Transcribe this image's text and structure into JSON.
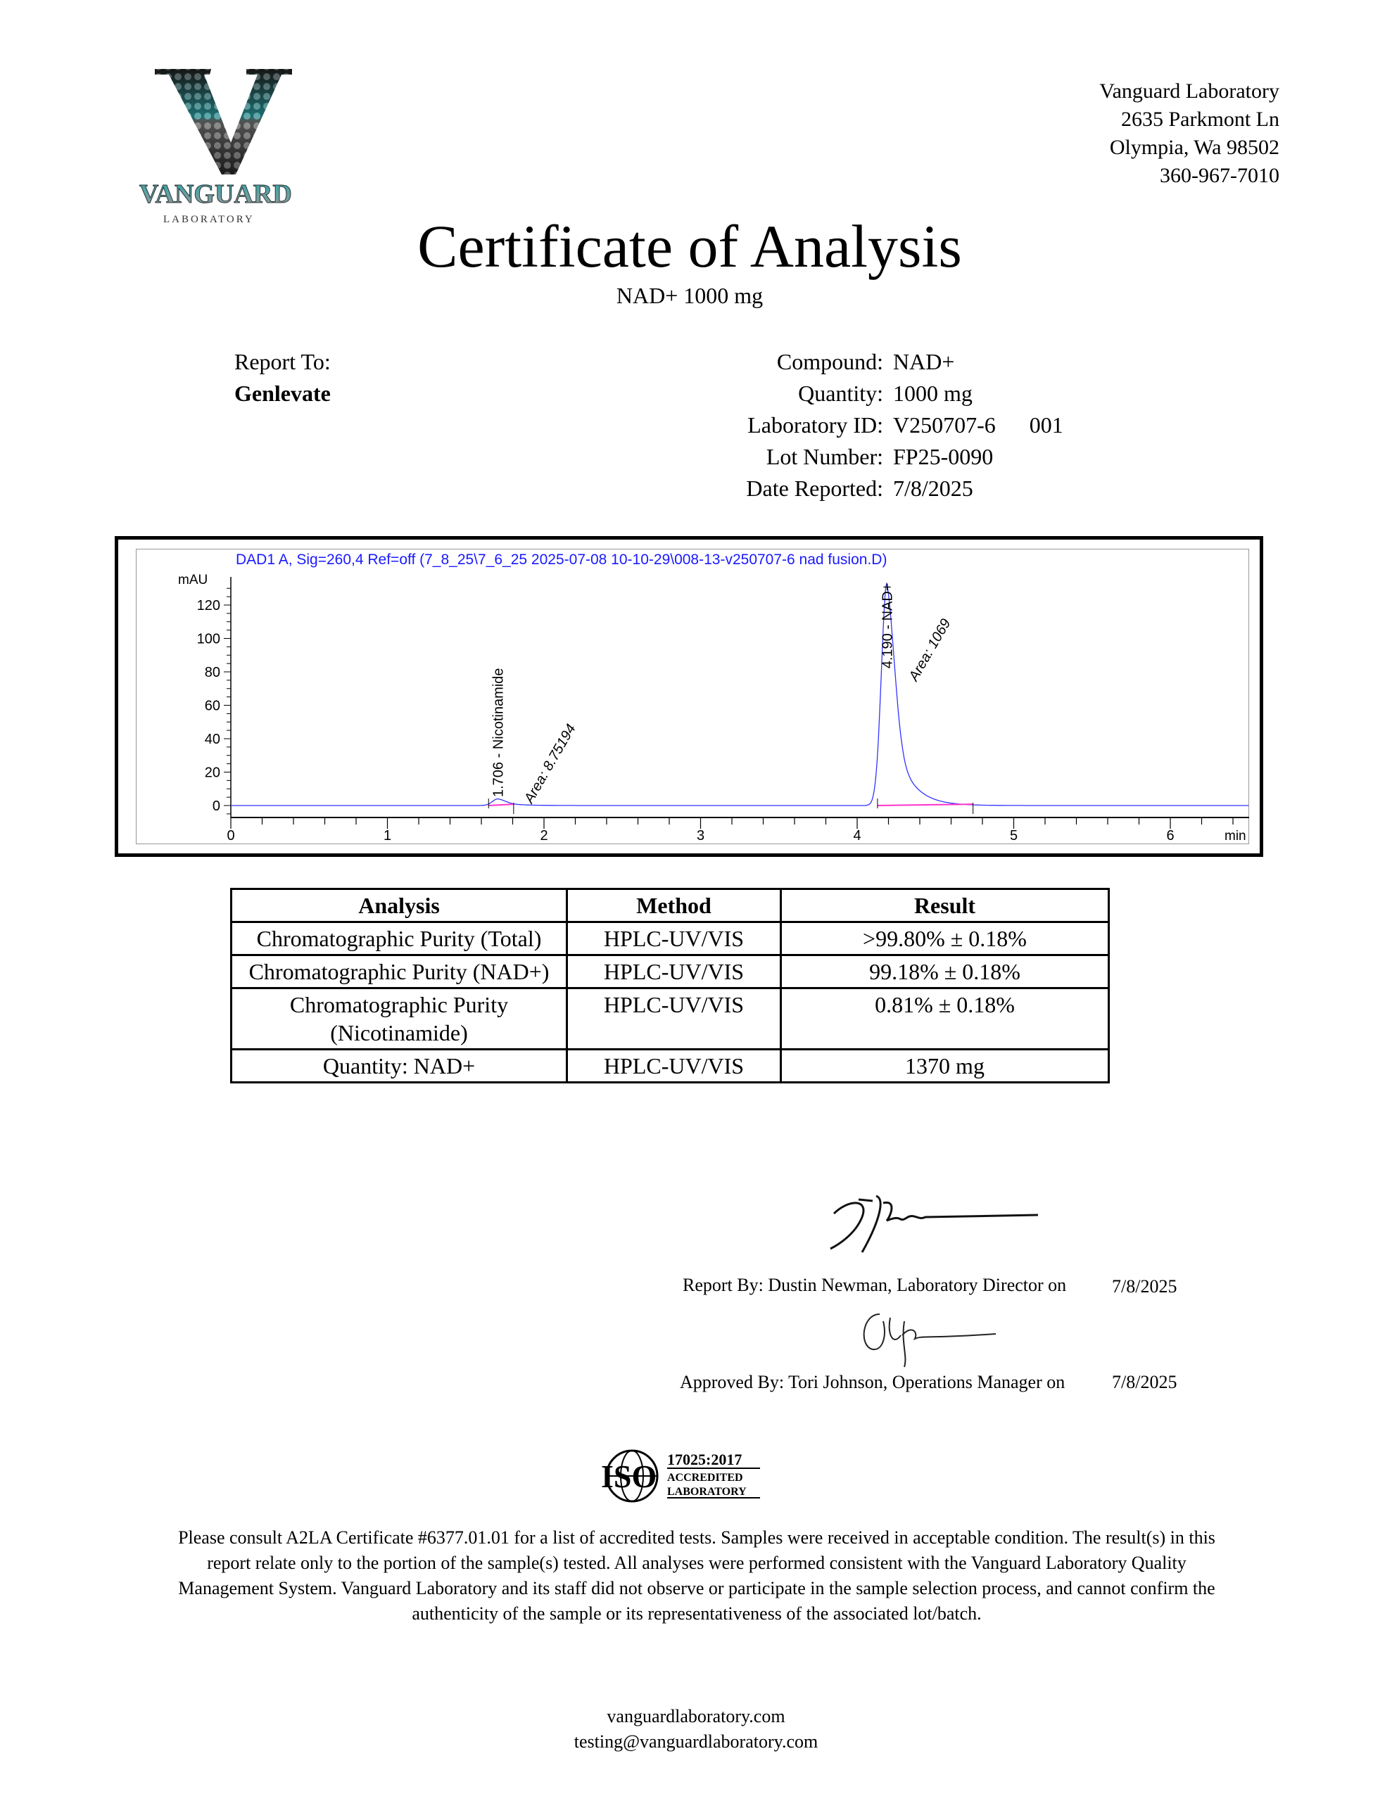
{
  "logo": {
    "name": "VANGUARD",
    "sub": "LABORATORY",
    "colors": {
      "teal": "#2ab7bd",
      "silver": "#b0b0b0",
      "dark": "#111111"
    }
  },
  "address": {
    "lines": [
      "Vanguard Laboratory",
      "2635 Parkmont Ln",
      "Olympia, Wa 98502",
      "360-967-7010"
    ]
  },
  "title": "Certificate of Analysis",
  "subtitle": "NAD+ 1000 mg",
  "report_to": {
    "label": "Report To:",
    "client": "Genlevate"
  },
  "info": [
    {
      "label": "Compound:",
      "value": "NAD+",
      "extra": ""
    },
    {
      "label": "Quantity:",
      "value": "1000 mg",
      "extra": ""
    },
    {
      "label": "Laboratory ID:",
      "value": "V250707-6",
      "extra": "001"
    },
    {
      "label": "Lot Number:",
      "value": "FP25-0090",
      "extra": ""
    },
    {
      "label": "Date Reported:",
      "value": "7/8/2025",
      "extra": ""
    }
  ],
  "chart_data": {
    "type": "line",
    "title": "DAD1 A, Sig=260,4 Ref=off (7_8_25\\7_6_25 2025-07-08 10-10-29\\008-13-v250707-6 nad fusion.D)",
    "xlabel": "min",
    "ylabel": "mAU",
    "xlim": [
      0,
      6.5
    ],
    "ylim": [
      -5,
      135
    ],
    "xticks": [
      0,
      1,
      2,
      3,
      4,
      5,
      6
    ],
    "yticks": [
      0,
      20,
      40,
      60,
      80,
      100,
      120
    ],
    "grid": false,
    "colors": {
      "trace": "#3333ff",
      "baseline": "#ff33cc",
      "title": "#1a1aff"
    },
    "peaks": [
      {
        "rt": 1.706,
        "height": 4,
        "name": "Nicotinamide",
        "label": "1.706 - Nicotinamide",
        "area_label": "Area: 8.75194",
        "area": 8.75194
      },
      {
        "rt": 4.19,
        "height": 133,
        "name": "NAD+",
        "label": "4.190 - NAD+",
        "area_label": "Area: 1069",
        "area": 1069
      }
    ]
  },
  "table": {
    "headers": [
      "Analysis",
      "Method",
      "Result"
    ],
    "rows": [
      {
        "analysis": "Chromatographic Purity (Total)",
        "method": "HPLC-UV/VIS",
        "result": ">99.80% ± 0.18%"
      },
      {
        "analysis": "Chromatographic Purity (NAD+)",
        "method": "HPLC-UV/VIS",
        "result": "99.18% ± 0.18%"
      },
      {
        "analysis": "Chromatographic Purity (Nicotinamide)",
        "method": "HPLC-UV/VIS",
        "result": "0.81% ± 0.18%"
      },
      {
        "analysis": "Quantity: NAD+",
        "method": "HPLC-UV/VIS",
        "result": "1370 mg"
      }
    ]
  },
  "signatures": {
    "report_by": "Report By: Dustin Newman, Laboratory Director on",
    "report_date": "7/8/2025",
    "approved_by": "Approved By: Tori Johnson, Operations Manager on",
    "approved_date": "7/8/2025"
  },
  "iso": {
    "mark": "ISO",
    "standard": "17025:2017",
    "line1": "ACCREDITED",
    "line2": "LABORATORY"
  },
  "disclaimer": [
    "Please consult A2LA Certificate #6377.01.01 for a list of accredited tests. Samples were received in acceptable condition. The result(s) in this",
    "report relate only to the portion of the sample(s) tested. All analyses were performed consistent with the Vanguard Laboratory Quality",
    "Management System. Vanguard Laboratory and its staff did not observe or participate in the sample selection process, and cannot confirm the",
    "authenticity of the sample or its representativeness of the associated lot/batch."
  ],
  "footer": {
    "website": "vanguardlaboratory.com",
    "email": "testing@vanguardlaboratory.com"
  }
}
